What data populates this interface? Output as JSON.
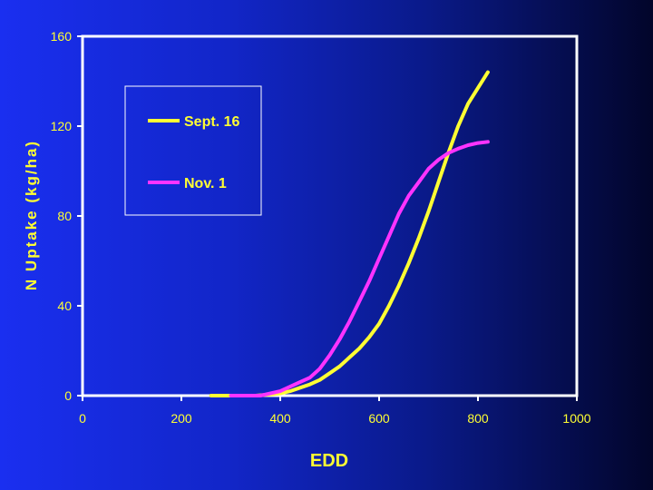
{
  "chart_data": {
    "type": "line",
    "title": "",
    "xlabel": "EDD",
    "ylabel": "N Uptake (kg/ha)",
    "xlim": [
      0,
      1000
    ],
    "ylim": [
      0,
      160
    ],
    "xticks": [
      0,
      200,
      400,
      600,
      800,
      1000
    ],
    "yticks": [
      0,
      40,
      80,
      120,
      160
    ],
    "grid": false,
    "legend_position": "top-left",
    "series": [
      {
        "name": "Sept. 16",
        "color": "#ffff33",
        "x": [
          260,
          300,
          350,
          380,
          400,
          420,
          440,
          460,
          480,
          500,
          520,
          540,
          560,
          580,
          600,
          620,
          640,
          660,
          680,
          700,
          720,
          740,
          760,
          780,
          800,
          820
        ],
        "y": [
          0,
          0,
          0,
          0.5,
          1,
          2,
          3.5,
          5,
          7,
          10,
          13,
          17,
          21,
          26,
          32,
          40,
          49,
          59,
          70,
          82,
          95,
          108,
          120,
          130,
          137,
          144
        ]
      },
      {
        "name": "Nov. 1",
        "color": "#ff33ff",
        "x": [
          300,
          360,
          400,
          420,
          440,
          460,
          480,
          500,
          520,
          540,
          560,
          580,
          600,
          620,
          640,
          660,
          680,
          700,
          720,
          740,
          760,
          780,
          800,
          820
        ],
        "y": [
          0,
          0,
          2,
          4,
          6,
          8,
          12,
          18,
          25,
          33,
          42,
          51,
          61,
          71,
          81,
          89,
          95,
          101,
          105,
          108,
          110,
          111.5,
          112.5,
          113
        ]
      }
    ]
  }
}
